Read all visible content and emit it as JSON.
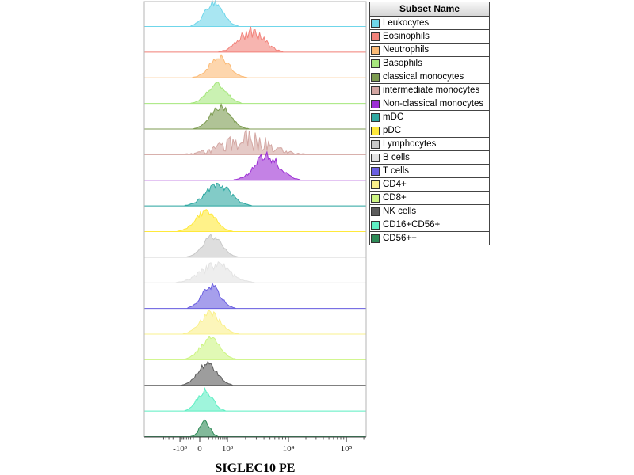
{
  "chart_data": {
    "type": "histogram-ridgeline",
    "title": "",
    "xlabel": "SIGLEC10 PE",
    "x_scale": "biexponential",
    "x_ticks": [
      {
        "label": "-10³",
        "value": -1000
      },
      {
        "label": "0",
        "value": 0
      },
      {
        "label": "10³",
        "value": 1000
      },
      {
        "label": "10⁴",
        "value": 10000
      },
      {
        "label": "10⁵",
        "value": 100000
      }
    ],
    "legend_title": "Subset Name",
    "series": [
      {
        "name": "Leukocytes",
        "color": "#6FD6EA",
        "median": 350,
        "spread": 0.04,
        "height": 0.95,
        "noise": 0.15
      },
      {
        "name": "Eosinophils",
        "color": "#F2837B",
        "median": 2500,
        "spread": 0.055,
        "height": 0.8,
        "noise": 0.3
      },
      {
        "name": "Neutrophils",
        "color": "#FBBB77",
        "median": 550,
        "spread": 0.045,
        "height": 0.78,
        "noise": 0.18
      },
      {
        "name": "Basophils",
        "color": "#A7E77E",
        "median": 450,
        "spread": 0.042,
        "height": 0.78,
        "noise": 0.18
      },
      {
        "name": "classical monocytes",
        "color": "#7C9B50",
        "median": 600,
        "spread": 0.045,
        "height": 0.85,
        "noise": 0.18
      },
      {
        "name": "intermediate monocytes",
        "color": "#D3A6A2",
        "median": 2000,
        "spread": 0.105,
        "height": 0.58,
        "noise": 0.75
      },
      {
        "name": "Non-classical monocytes",
        "color": "#9C2FD4",
        "median": 4500,
        "spread": 0.055,
        "height": 0.95,
        "noise": 0.25
      },
      {
        "name": "mDC",
        "color": "#2FA8A2",
        "median": 500,
        "spread": 0.055,
        "height": 0.85,
        "noise": 0.2
      },
      {
        "name": "pDC",
        "color": "#FFE93B",
        "median": 120,
        "spread": 0.045,
        "height": 0.8,
        "noise": 0.18
      },
      {
        "name": "Lymphocytes",
        "color": "#C8C8C8",
        "median": 300,
        "spread": 0.042,
        "height": 0.82,
        "noise": 0.15
      },
      {
        "name": "B cells",
        "color": "#E3E3E3",
        "median": 400,
        "spread": 0.065,
        "height": 0.72,
        "noise": 0.3
      },
      {
        "name": "T cells",
        "color": "#6A5FE0",
        "median": 260,
        "spread": 0.04,
        "height": 0.88,
        "noise": 0.15
      },
      {
        "name": "CD4+",
        "color": "#FAF08C",
        "median": 240,
        "spread": 0.045,
        "height": 0.8,
        "noise": 0.18
      },
      {
        "name": "CD8+",
        "color": "#CDF583",
        "median": 240,
        "spread": 0.045,
        "height": 0.8,
        "noise": 0.18
      },
      {
        "name": "NK cells",
        "color": "#5C5C5C",
        "median": 170,
        "spread": 0.042,
        "height": 0.85,
        "noise": 0.15
      },
      {
        "name": "CD16+CD56+",
        "color": "#5FEFC4",
        "median": 110,
        "spread": 0.034,
        "height": 0.8,
        "noise": 0.18
      },
      {
        "name": "CD56++",
        "color": "#2E8B57",
        "median": 110,
        "spread": 0.022,
        "height": 0.6,
        "noise": 0.2
      }
    ]
  }
}
